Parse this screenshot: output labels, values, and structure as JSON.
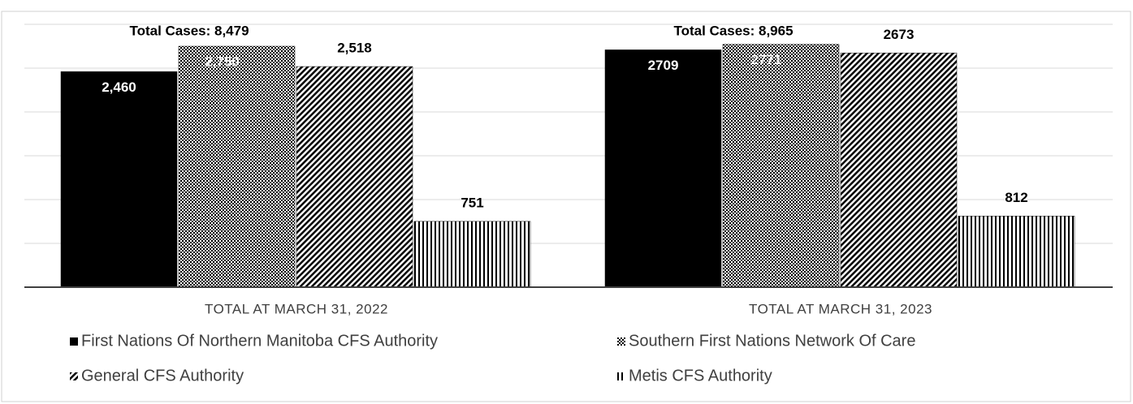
{
  "chart_data": {
    "type": "bar",
    "categories": [
      "TOTAL AT MARCH 31, 2022",
      "TOTAL AT MARCH 31, 2023"
    ],
    "annotations": [
      "Total Cases: 8,479",
      "Total Cases: 8,965"
    ],
    "series": [
      {
        "name": "First Nations Of Northern Manitoba CFS Authority",
        "color": "#000000",
        "pattern": "solid",
        "values": [
          2460,
          2709
        ],
        "value_labels": [
          "2,460",
          "2709"
        ]
      },
      {
        "name": "Southern First Nations Network Of Care",
        "color": "#000000",
        "pattern": "checker",
        "values": [
          2750,
          2771
        ],
        "value_labels": [
          "2,750",
          "2771"
        ]
      },
      {
        "name": "General CFS Authority",
        "color": "#000000",
        "pattern": "diagonal",
        "values": [
          2518,
          2673
        ],
        "value_labels": [
          "2,518",
          "2673"
        ]
      },
      {
        "name": "Metis CFS Authority",
        "color": "#000000",
        "pattern": "vertical",
        "values": [
          751,
          812
        ]
      }
    ],
    "ylim": [
      0,
      3000
    ],
    "yticks": [
      0,
      500,
      1000,
      1500,
      2000,
      2500,
      3000
    ],
    "grid": true
  }
}
